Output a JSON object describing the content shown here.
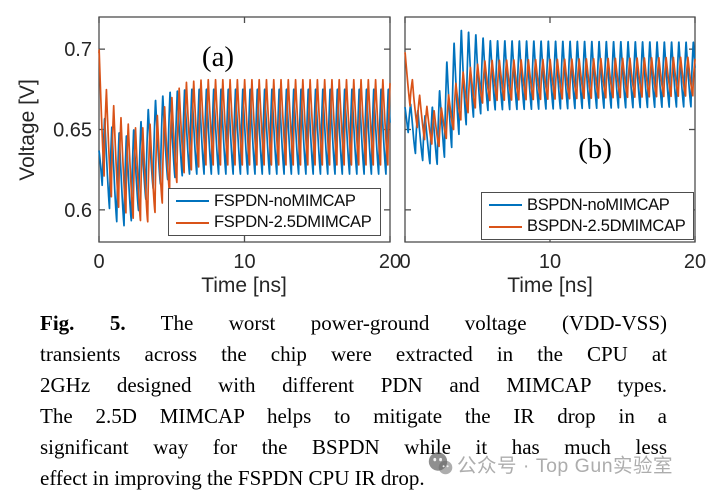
{
  "caption": {
    "lines": [
      {
        "bold": "Fig. 5.",
        "text": "The worst power-ground voltage (VDD-VSS)"
      },
      {
        "text": "transients across the chip were extracted in the CPU at"
      },
      {
        "text": "2GHz designed with different PDN and MIMCAP types."
      },
      {
        "text": "The 2.5D MIMCAP helps to mitigate the IR drop in a"
      },
      {
        "text": "significant way for the BSPDN while it has much less"
      },
      {
        "text": "effect in improving the FSPDN CPU IR drop."
      }
    ]
  },
  "watermark": {
    "icon": "wechat-icon",
    "text": "公众号 · Top Gun实验室",
    "color": "#7a7a7a"
  },
  "colors": {
    "series_blue": "#0072BD",
    "series_orange": "#D95319",
    "axis": "#4d4d4d",
    "tick_text": "#262626"
  },
  "chart_data": [
    {
      "type": "line",
      "panel_label": "(a)",
      "xlabel": "Time [ns]",
      "ylabel": "Voltage [V]",
      "xlim": [
        0,
        20
      ],
      "ylim": [
        0.58,
        0.72
      ],
      "xticks": [
        0,
        10,
        20
      ],
      "yticks": [
        0.6,
        0.65,
        0.7
      ],
      "grid": false,
      "legend_position": "lower right",
      "oscillation_period_ns": 0.5,
      "series": [
        {
          "name": "FSPDN-noMIMCAP",
          "color": "#0072BD",
          "phase": 0.55,
          "envelope": [
            [
              0,
              0.625,
              0.645
            ],
            [
              0.4,
              0.607,
              0.658
            ],
            [
              1.1,
              0.593,
              0.65
            ],
            [
              1.9,
              0.589,
              0.647
            ],
            [
              2.7,
              0.599,
              0.653
            ],
            [
              3.7,
              0.613,
              0.668
            ],
            [
              4.8,
              0.619,
              0.674
            ],
            [
              6.2,
              0.622,
              0.676
            ],
            [
              20,
              0.622,
              0.676
            ]
          ]
        },
        {
          "name": "FSPDN-2.5DMIMCAP",
          "color": "#D95319",
          "phase": 0.3,
          "envelope": [
            [
              0,
              0.64,
              0.7
            ],
            [
              0.5,
              0.613,
              0.675
            ],
            [
              1.3,
              0.602,
              0.659
            ],
            [
              2.3,
              0.595,
              0.651
            ],
            [
              3.3,
              0.592,
              0.651
            ],
            [
              4.5,
              0.606,
              0.664
            ],
            [
              5.8,
              0.623,
              0.679
            ],
            [
              7.2,
              0.628,
              0.681
            ],
            [
              20,
              0.628,
              0.681
            ]
          ]
        }
      ]
    },
    {
      "type": "line",
      "panel_label": "(b)",
      "xlabel": "Time [ns]",
      "ylabel": "",
      "xlim": [
        0,
        20
      ],
      "ylim": [
        0.58,
        0.72
      ],
      "xticks": [
        0,
        10,
        20
      ],
      "yticks": [
        0.6,
        0.65,
        0.7
      ],
      "grid": false,
      "legend_position": "lower right",
      "oscillation_period_ns": 0.5,
      "series": [
        {
          "name": "BSPDN-noMIMCAP",
          "color": "#0072BD",
          "phase": 0.55,
          "envelope": [
            [
              0,
              0.655,
              0.67
            ],
            [
              0.6,
              0.636,
              0.664
            ],
            [
              1.4,
              0.629,
              0.659
            ],
            [
              2.2,
              0.628,
              0.668
            ],
            [
              3.0,
              0.635,
              0.697
            ],
            [
              3.8,
              0.648,
              0.713
            ],
            [
              4.6,
              0.657,
              0.711
            ],
            [
              5.8,
              0.662,
              0.706
            ],
            [
              20,
              0.664,
              0.705
            ]
          ]
        },
        {
          "name": "BSPDN-2.5DMIMCAP",
          "color": "#D95319",
          "phase": 0.3,
          "envelope": [
            [
              0,
              0.678,
              0.698
            ],
            [
              0.6,
              0.655,
              0.678
            ],
            [
              1.4,
              0.643,
              0.665
            ],
            [
              2.3,
              0.639,
              0.66
            ],
            [
              3.1,
              0.647,
              0.673
            ],
            [
              4.1,
              0.659,
              0.687
            ],
            [
              5.6,
              0.668,
              0.693
            ],
            [
              20,
              0.671,
              0.695
            ]
          ]
        }
      ]
    }
  ]
}
